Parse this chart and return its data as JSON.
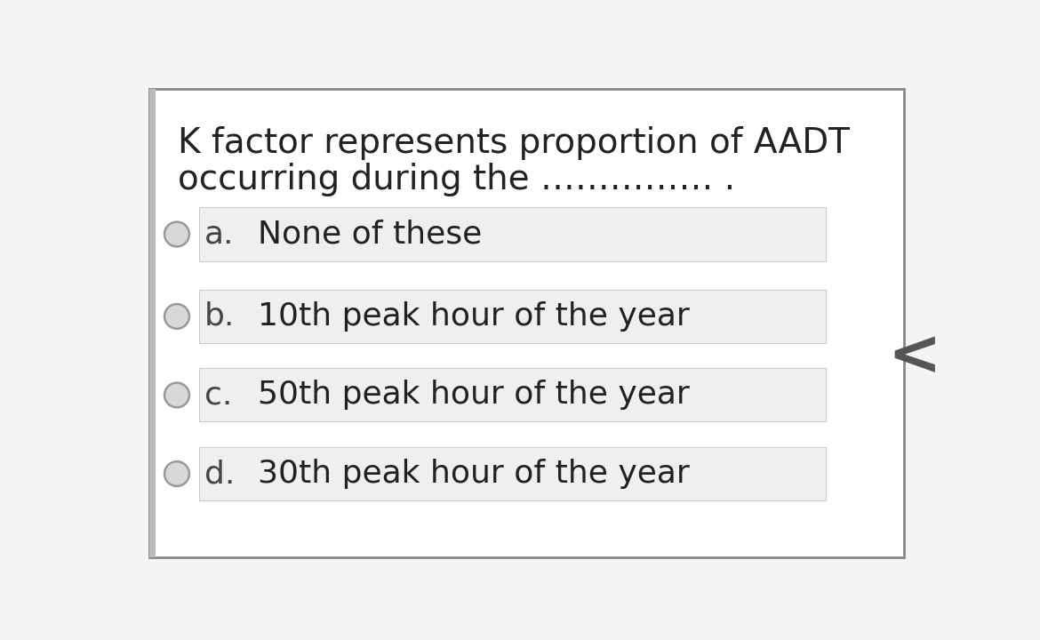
{
  "background_color": "#f5f5f5",
  "outer_box_bg": "#ffffff",
  "outer_box_edge": "#888888",
  "question_text_line1": "K factor represents proportion of AADT",
  "question_text_line2": "occurring during the …………… .",
  "options": [
    {
      "label": "a.",
      "text": "None of these"
    },
    {
      "label": "b.",
      "text": "10th peak hour of the year"
    },
    {
      "label": "c.",
      "text": "50th peak hour of the year"
    },
    {
      "label": "d.",
      "text": "30th peak hour of the year"
    }
  ],
  "option_box_color": "#efefef",
  "option_box_edge": "#cccccc",
  "radio_face": "#d8d8d8",
  "radio_edge": "#999999",
  "text_color": "#222222",
  "label_color": "#444444",
  "question_font_size": 28,
  "option_font_size": 26,
  "label_font_size": 26,
  "arrow_color": "#555555",
  "arrow_text": "<",
  "arrow_font_size": 52,
  "left_bar_color": "#bbbbbb",
  "font_family": "DejaVu Sans"
}
